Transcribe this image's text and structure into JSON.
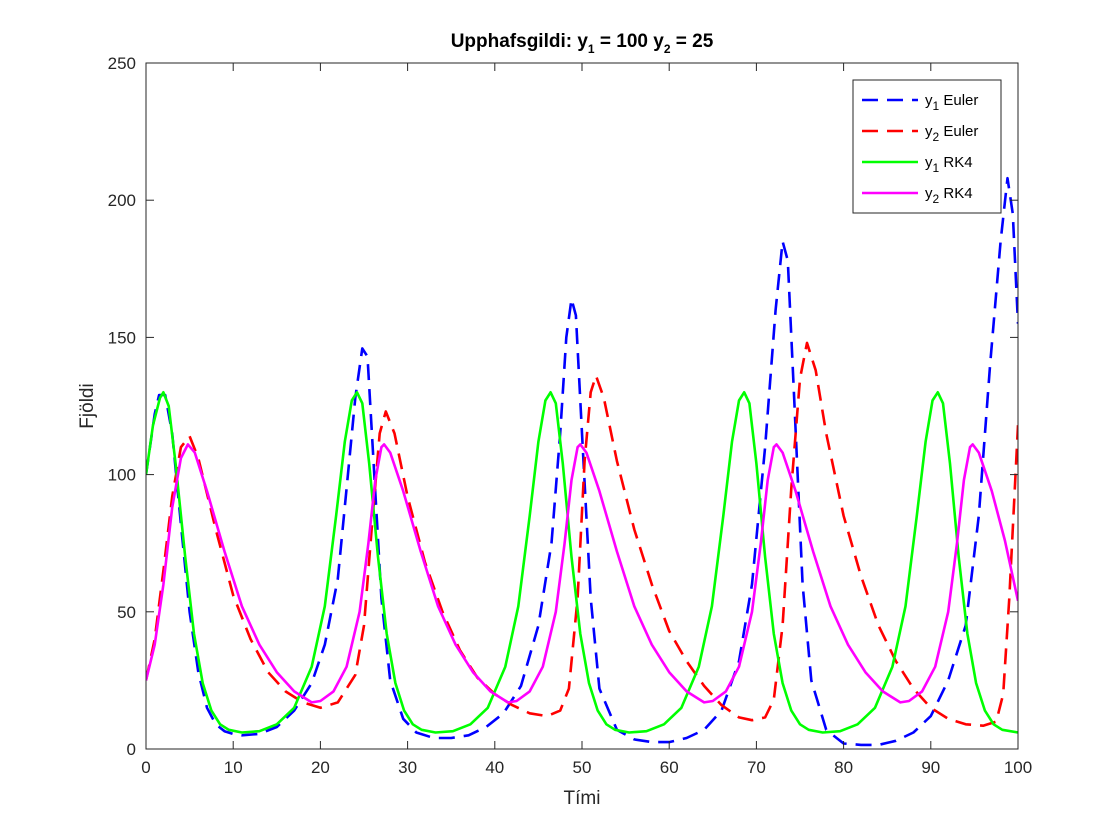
{
  "chart_data": {
    "type": "line",
    "title": {
      "prefix": "Upphafsgildi: y",
      "sub1": "1",
      "mid": " = 100 y",
      "sub2": "2",
      "suffix": " = 25"
    },
    "xlabel": "Tími",
    "ylabel": "Fjöldi",
    "xlim": [
      0,
      100
    ],
    "ylim": [
      0,
      250
    ],
    "xticks": [
      0,
      10,
      20,
      30,
      40,
      50,
      60,
      70,
      80,
      90,
      100
    ],
    "yticks": [
      0,
      50,
      100,
      150,
      200,
      250
    ],
    "grid": false,
    "legend_position": "top-right",
    "series": [
      {
        "name": {
          "base": "y",
          "sub": "1",
          "rest": " Euler"
        },
        "color": "#0000ff",
        "style": "dashed",
        "points": [
          [
            0,
            100
          ],
          [
            1,
            122
          ],
          [
            1.5,
            129
          ],
          [
            2.2,
            129
          ],
          [
            3,
            115
          ],
          [
            4,
            82
          ],
          [
            5,
            50
          ],
          [
            6,
            28
          ],
          [
            7,
            15
          ],
          [
            8,
            9
          ],
          [
            9,
            6.5
          ],
          [
            10,
            5.5
          ],
          [
            11,
            5
          ],
          [
            13,
            5.5
          ],
          [
            15,
            8
          ],
          [
            17,
            14
          ],
          [
            19,
            24
          ],
          [
            20.5,
            38
          ],
          [
            22,
            62
          ],
          [
            23,
            95
          ],
          [
            24,
            128
          ],
          [
            24.8,
            146
          ],
          [
            25.4,
            143
          ],
          [
            26,
            110
          ],
          [
            27,
            55
          ],
          [
            28,
            25
          ],
          [
            29.5,
            11
          ],
          [
            31,
            6
          ],
          [
            33,
            4
          ],
          [
            35,
            4
          ],
          [
            37,
            5
          ],
          [
            39,
            8
          ],
          [
            41,
            13
          ],
          [
            43,
            23
          ],
          [
            45,
            45
          ],
          [
            46.5,
            75
          ],
          [
            47.5,
            115
          ],
          [
            48.2,
            150
          ],
          [
            48.8,
            164
          ],
          [
            49.3,
            158
          ],
          [
            50,
            115
          ],
          [
            51,
            55
          ],
          [
            52,
            22
          ],
          [
            54,
            7
          ],
          [
            56,
            3.5
          ],
          [
            58,
            2.5
          ],
          [
            60,
            2.5
          ],
          [
            62,
            4
          ],
          [
            64,
            7
          ],
          [
            66,
            14
          ],
          [
            68,
            32
          ],
          [
            69.5,
            60
          ],
          [
            71,
            110
          ],
          [
            72.2,
            160
          ],
          [
            73,
            185
          ],
          [
            73.6,
            178
          ],
          [
            74.3,
            130
          ],
          [
            75.3,
            60
          ],
          [
            76.3,
            25
          ],
          [
            78,
            7
          ],
          [
            80,
            2
          ],
          [
            82,
            1.5
          ],
          [
            84,
            1.5
          ],
          [
            86,
            3
          ],
          [
            88,
            6
          ],
          [
            90,
            12
          ],
          [
            92,
            25
          ],
          [
            94,
            45
          ],
          [
            95.5,
            85
          ],
          [
            96.8,
            140
          ],
          [
            98,
            185
          ],
          [
            98.8,
            208
          ],
          [
            99.4,
            195
          ],
          [
            100,
            155
          ]
        ]
      },
      {
        "name": {
          "base": "y",
          "sub": "2",
          "rest": " Euler"
        },
        "color": "#ff0000",
        "style": "dashed",
        "points": [
          [
            0,
            25
          ],
          [
            1,
            40
          ],
          [
            2,
            65
          ],
          [
            3,
            92
          ],
          [
            4,
            110
          ],
          [
            5,
            114
          ],
          [
            6,
            106
          ],
          [
            8,
            80
          ],
          [
            10,
            56
          ],
          [
            12,
            40
          ],
          [
            14,
            28
          ],
          [
            16,
            21
          ],
          [
            18,
            17
          ],
          [
            20,
            15
          ],
          [
            22,
            17
          ],
          [
            24,
            27
          ],
          [
            25,
            45
          ],
          [
            26,
            85
          ],
          [
            26.8,
            115
          ],
          [
            27.5,
            123
          ],
          [
            28.5,
            115
          ],
          [
            30,
            92
          ],
          [
            32,
            68
          ],
          [
            34,
            50
          ],
          [
            36,
            36
          ],
          [
            38,
            26
          ],
          [
            40,
            20
          ],
          [
            42,
            16
          ],
          [
            44,
            13
          ],
          [
            46,
            12
          ],
          [
            47.5,
            14
          ],
          [
            48.5,
            22
          ],
          [
            49.5,
            55
          ],
          [
            50.3,
            105
          ],
          [
            51,
            130
          ],
          [
            51.6,
            136
          ],
          [
            52.5,
            128
          ],
          [
            54,
            105
          ],
          [
            56,
            80
          ],
          [
            58,
            60
          ],
          [
            60,
            43
          ],
          [
            62,
            32
          ],
          [
            64,
            23
          ],
          [
            66,
            16
          ],
          [
            68,
            11.5
          ],
          [
            69.5,
            10.5
          ],
          [
            71,
            11.5
          ],
          [
            72,
            18
          ],
          [
            73,
            45
          ],
          [
            74,
            95
          ],
          [
            75,
            135
          ],
          [
            75.8,
            148
          ],
          [
            76.8,
            138
          ],
          [
            78,
            115
          ],
          [
            80,
            85
          ],
          [
            82,
            63
          ],
          [
            84,
            45
          ],
          [
            86,
            32
          ],
          [
            88,
            22
          ],
          [
            90,
            15
          ],
          [
            92,
            11
          ],
          [
            94,
            9
          ],
          [
            96,
            8.5
          ],
          [
            97.5,
            10
          ],
          [
            98.3,
            20
          ],
          [
            99,
            55
          ],
          [
            100,
            118
          ]
        ]
      },
      {
        "name": {
          "base": "y",
          "sub": "1",
          "rest": " RK4"
        },
        "color": "#00ff00",
        "style": "solid",
        "points": [
          [
            0,
            100
          ],
          [
            0.8,
            118
          ],
          [
            1.6,
            128
          ],
          [
            2,
            130
          ],
          [
            2.6,
            125
          ],
          [
            3.4,
            104
          ],
          [
            4.5,
            70
          ],
          [
            5.5,
            42
          ],
          [
            6.5,
            24
          ],
          [
            7.5,
            14
          ],
          [
            8.5,
            9
          ],
          [
            9.5,
            7
          ],
          [
            11,
            6
          ],
          [
            13,
            6.5
          ],
          [
            15,
            9
          ],
          [
            17,
            15
          ],
          [
            19,
            30
          ],
          [
            20.5,
            52
          ],
          [
            21.8,
            85
          ],
          [
            22.8,
            112
          ],
          [
            23.6,
            127
          ],
          [
            24.2,
            130
          ],
          [
            24.8,
            126
          ],
          [
            25.6,
            104
          ],
          [
            26.6,
            70
          ],
          [
            27.6,
            42
          ],
          [
            28.6,
            24
          ],
          [
            29.6,
            14
          ],
          [
            30.6,
            9
          ],
          [
            31.6,
            7
          ],
          [
            33.2,
            6
          ],
          [
            35.2,
            6.5
          ],
          [
            37.2,
            9
          ],
          [
            39.2,
            15
          ],
          [
            41.2,
            30
          ],
          [
            42.7,
            52
          ],
          [
            44,
            85
          ],
          [
            45,
            112
          ],
          [
            45.8,
            127
          ],
          [
            46.4,
            130
          ],
          [
            47,
            126
          ],
          [
            47.8,
            104
          ],
          [
            48.8,
            70
          ],
          [
            49.8,
            42
          ],
          [
            50.8,
            24
          ],
          [
            51.8,
            14
          ],
          [
            52.8,
            9
          ],
          [
            53.8,
            7
          ],
          [
            55.4,
            6
          ],
          [
            57.4,
            6.5
          ],
          [
            59.4,
            9
          ],
          [
            61.4,
            15
          ],
          [
            63.4,
            30
          ],
          [
            64.9,
            52
          ],
          [
            66.2,
            85
          ],
          [
            67.2,
            112
          ],
          [
            68,
            127
          ],
          [
            68.6,
            130
          ],
          [
            69.2,
            126
          ],
          [
            70,
            104
          ],
          [
            71,
            70
          ],
          [
            72,
            42
          ],
          [
            73,
            24
          ],
          [
            74,
            14
          ],
          [
            75,
            9
          ],
          [
            76,
            7
          ],
          [
            77.6,
            6
          ],
          [
            79.6,
            6.5
          ],
          [
            81.6,
            9
          ],
          [
            83.6,
            15
          ],
          [
            85.6,
            30
          ],
          [
            87.1,
            52
          ],
          [
            88.4,
            85
          ],
          [
            89.4,
            112
          ],
          [
            90.2,
            127
          ],
          [
            90.8,
            130
          ],
          [
            91.4,
            126
          ],
          [
            92.2,
            104
          ],
          [
            93.2,
            70
          ],
          [
            94.2,
            42
          ],
          [
            95.2,
            24
          ],
          [
            96.2,
            14
          ],
          [
            97.2,
            9
          ],
          [
            98.2,
            7
          ],
          [
            100,
            6
          ]
        ]
      },
      {
        "name": {
          "base": "y",
          "sub": "2",
          "rest": " RK4"
        },
        "color": "#ff00ff",
        "style": "solid",
        "points": [
          [
            0,
            25
          ],
          [
            1,
            38
          ],
          [
            2,
            60
          ],
          [
            3,
            88
          ],
          [
            4,
            106
          ],
          [
            4.8,
            111
          ],
          [
            5.6,
            108
          ],
          [
            7,
            94
          ],
          [
            9,
            72
          ],
          [
            11,
            52
          ],
          [
            13,
            38
          ],
          [
            15,
            28
          ],
          [
            17,
            21
          ],
          [
            19,
            17
          ],
          [
            20,
            17.5
          ],
          [
            21.5,
            21
          ],
          [
            23,
            30
          ],
          [
            24.5,
            50
          ],
          [
            25.5,
            75
          ],
          [
            26.3,
            98
          ],
          [
            27,
            110
          ],
          [
            27.3,
            111
          ],
          [
            28,
            108
          ],
          [
            29.5,
            94
          ],
          [
            31.5,
            72
          ],
          [
            33.5,
            52
          ],
          [
            35.5,
            38
          ],
          [
            37.5,
            28
          ],
          [
            39.5,
            21
          ],
          [
            41.5,
            17
          ],
          [
            42.5,
            17.5
          ],
          [
            44,
            21
          ],
          [
            45.5,
            30
          ],
          [
            47,
            50
          ],
          [
            48,
            75
          ],
          [
            48.8,
            98
          ],
          [
            49.5,
            110
          ],
          [
            49.8,
            111
          ],
          [
            50.5,
            108
          ],
          [
            52,
            94
          ],
          [
            54,
            72
          ],
          [
            56,
            52
          ],
          [
            58,
            38
          ],
          [
            60,
            28
          ],
          [
            62,
            21
          ],
          [
            64,
            17
          ],
          [
            65,
            17.5
          ],
          [
            66.5,
            21
          ],
          [
            68,
            30
          ],
          [
            69.5,
            50
          ],
          [
            70.5,
            75
          ],
          [
            71.3,
            98
          ],
          [
            72,
            110
          ],
          [
            72.3,
            111
          ],
          [
            73,
            108
          ],
          [
            74.5,
            94
          ],
          [
            76.5,
            72
          ],
          [
            78.5,
            52
          ],
          [
            80.5,
            38
          ],
          [
            82.5,
            28
          ],
          [
            84.5,
            21
          ],
          [
            86.5,
            17
          ],
          [
            87.5,
            17.5
          ],
          [
            89,
            21
          ],
          [
            90.5,
            30
          ],
          [
            92,
            50
          ],
          [
            93,
            75
          ],
          [
            93.8,
            98
          ],
          [
            94.5,
            110
          ],
          [
            94.8,
            111
          ],
          [
            95.5,
            108
          ],
          [
            97,
            94
          ],
          [
            98.5,
            76
          ],
          [
            100,
            54
          ]
        ]
      }
    ]
  }
}
